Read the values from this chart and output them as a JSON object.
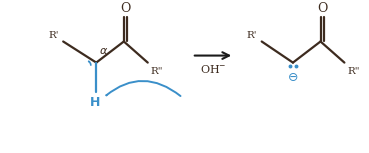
{
  "bg_color": "#ffffff",
  "bond_color": "#3d2b1f",
  "blue_color": "#3a8fc9",
  "black_color": "#1a1a1a",
  "figsize": [
    3.69,
    1.53
  ],
  "dpi": 100,
  "xlim": [
    0,
    10
  ],
  "ylim": [
    0,
    4.15
  ]
}
